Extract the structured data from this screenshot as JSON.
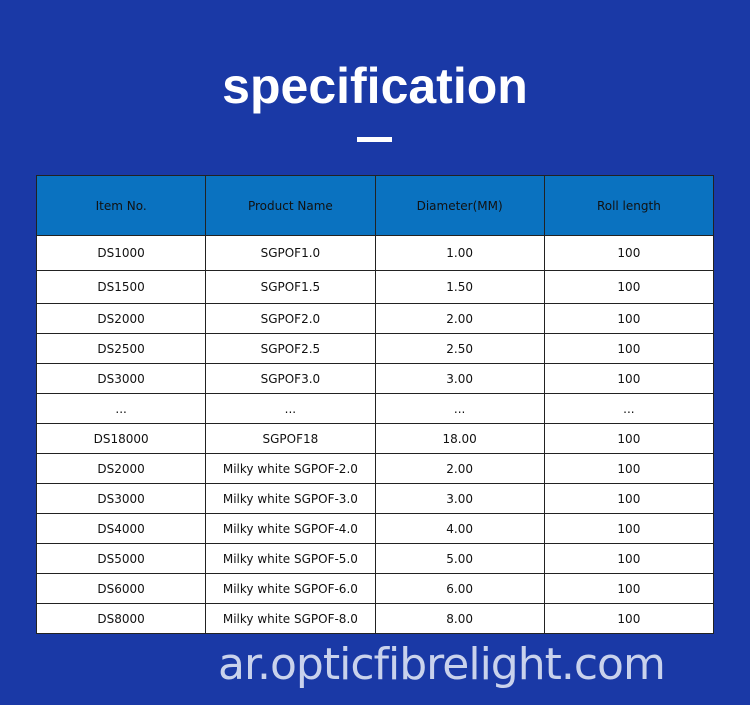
{
  "title": "specification",
  "table": {
    "headers": [
      "Item No.",
      "Product Name",
      "Diameter(MM)",
      "Roll length"
    ],
    "rows": [
      [
        "DS1000",
        "SGPOF1.0",
        "1.00",
        "100"
      ],
      [
        "DS1500",
        "SGPOF1.5",
        "1.50",
        "100"
      ],
      [
        "DS2000",
        "SGPOF2.0",
        "2.00",
        "100"
      ],
      [
        "DS2500",
        "SGPOF2.5",
        "2.50",
        "100"
      ],
      [
        "DS3000",
        "SGPOF3.0",
        "3.00",
        "100"
      ],
      [
        "...",
        "...",
        "...",
        "..."
      ],
      [
        "DS18000",
        "SGPOF18",
        "18.00",
        "100"
      ],
      [
        "DS2000",
        "Milky white SGPOF-2.0",
        "2.00",
        "100"
      ],
      [
        "DS3000",
        "Milky white SGPOF-3.0",
        "3.00",
        "100"
      ],
      [
        "DS4000",
        "Milky white SGPOF-4.0",
        "4.00",
        "100"
      ],
      [
        "DS5000",
        "Milky white SGPOF-5.0",
        "5.00",
        "100"
      ],
      [
        "DS6000",
        "Milky white SGPOF-6.0",
        "6.00",
        "100"
      ],
      [
        "DS8000",
        "Milky white SGPOF-8.0",
        "8.00",
        "100"
      ]
    ]
  },
  "watermark": "ar.opticfibrelight.com",
  "colors": {
    "background": "#1a39a6",
    "header": "#0a72c0"
  }
}
